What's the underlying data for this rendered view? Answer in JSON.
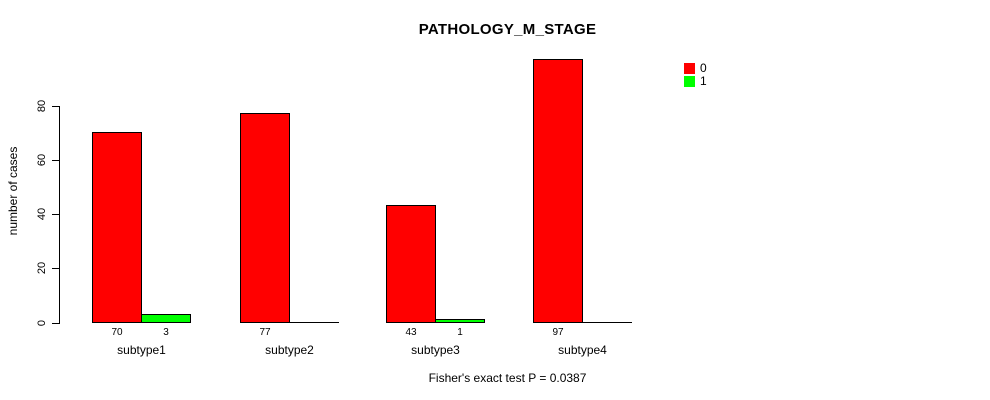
{
  "title": "PATHOLOGY_M_STAGE",
  "y_axis": {
    "label": "number of cases",
    "tick_labels": [
      "0",
      "20",
      "40",
      "60",
      "80"
    ]
  },
  "caption": "Fisher's exact test P = 0.0387",
  "legend": {
    "entries": [
      {
        "label": "0",
        "color": "#ff0000"
      },
      {
        "label": "1",
        "color": "#00ff00"
      }
    ]
  },
  "chart_data": {
    "type": "bar",
    "title": "PATHOLOGY_M_STAGE",
    "categories": [
      "subtype1",
      "subtype2",
      "subtype3",
      "subtype4"
    ],
    "series": [
      {
        "name": "0",
        "color": "#ff0000",
        "values": [
          70,
          77,
          43,
          97
        ]
      },
      {
        "name": "1",
        "color": "#00ff00",
        "values": [
          3,
          0,
          1,
          0
        ]
      }
    ],
    "bar_value_labels": [
      [
        "70",
        "3"
      ],
      [
        "77",
        ""
      ],
      [
        "43",
        "1"
      ],
      [
        "97",
        ""
      ]
    ],
    "xlabel": "",
    "ylabel": "number of cases",
    "ylim": [
      0,
      97
    ],
    "y_ticks": [
      0,
      20,
      40,
      60,
      80
    ],
    "grid": false,
    "legend_position": "top-right",
    "annotation": "Fisher's exact test P = 0.0387"
  }
}
